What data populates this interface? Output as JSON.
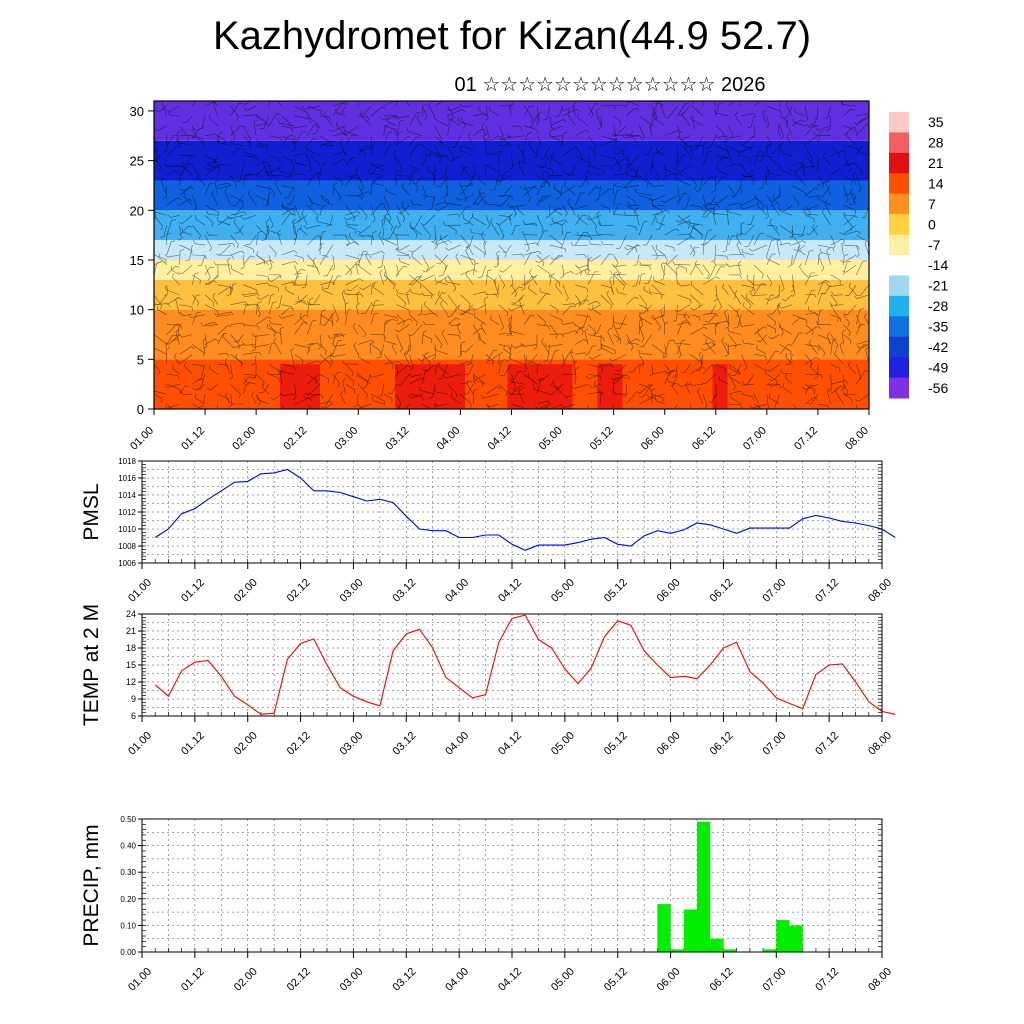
{
  "title": "Kazhydromet for Kizan(44.9 52.7)",
  "subtitle": "01 ☆☆☆☆☆☆☆☆☆☆☆☆☆ 2026",
  "time_labels": [
    "01.00",
    "01.12",
    "02.00",
    "02.12",
    "03.00",
    "03.12",
    "04.00",
    "04.12",
    "05.00",
    "05.12",
    "06.00",
    "06.12",
    "07.00",
    "07.12",
    "08.00"
  ],
  "colorbar": {
    "labels": [
      "35",
      "28",
      "21",
      "14",
      "7",
      "0",
      "-7",
      "-14",
      "-21",
      "-28",
      "-35",
      "-42",
      "-49",
      "-56"
    ],
    "colors": [
      "#ffc8c8",
      "#f06060",
      "#e01010",
      "#ff5000",
      "#ff9020",
      "#ffd040",
      "#fff0a0",
      "#ffffff",
      "#a0d8f0",
      "#20b0f0",
      "#1070e0",
      "#1040d0",
      "#2020e0",
      "#8030e0"
    ]
  },
  "chart_data": [
    {
      "type": "heatmap",
      "name": "cross-section",
      "y_ticks": [
        "30",
        "25",
        "20",
        "15",
        "10",
        "5",
        "0"
      ],
      "ylim": [
        0,
        31
      ],
      "xlim": [
        0,
        56
      ],
      "layers": [
        {
          "y_from": 0,
          "y_to": 5,
          "color": "#ff5000"
        },
        {
          "y_from": 5,
          "y_to": 10,
          "color": "#ff8c20"
        },
        {
          "y_from": 10,
          "y_to": 13,
          "color": "#ffc040"
        },
        {
          "y_from": 13,
          "y_to": 15,
          "color": "#fff0a0"
        },
        {
          "y_from": 15,
          "y_to": 17,
          "color": "#c8e8f8"
        },
        {
          "y_from": 17,
          "y_to": 20,
          "color": "#40b0f0"
        },
        {
          "y_from": 20,
          "y_to": 23,
          "color": "#1060e0"
        },
        {
          "y_from": 23,
          "y_to": 27,
          "color": "#1020d0"
        },
        {
          "y_from": 27,
          "y_to": 31,
          "color": "#6030e0"
        }
      ]
    },
    {
      "type": "line",
      "ylabel": "PMSL",
      "ylim": [
        1006,
        1018
      ],
      "y_ticks": [
        "1018",
        "1016",
        "1014",
        "1012",
        "1010",
        "1008",
        "1006"
      ],
      "color": "#0000ff",
      "values": [
        1009,
        1010,
        1011.8,
        1012.4,
        1013.5,
        1014.5,
        1015.5,
        1015.6,
        1016.5,
        1016.6,
        1017,
        1016,
        1014.5,
        1014.5,
        1014.3,
        1013.8,
        1013.3,
        1013.5,
        1013.1,
        1011.5,
        1010,
        1009.8,
        1009.8,
        1009,
        1009,
        1009.3,
        1009.3,
        1008.2,
        1007.5,
        1008.1,
        1008.1,
        1008.1,
        1008.4,
        1008.8,
        1009,
        1008.2,
        1008,
        1009.2,
        1009.8,
        1009.5,
        1009.9,
        1010.7,
        1010.5,
        1010,
        1009.5,
        1010.1,
        1010.1,
        1010.1,
        1010.1,
        1011.2,
        1011.6,
        1011.3,
        1010.9,
        1010.7,
        1010.4,
        1010,
        1009
      ]
    },
    {
      "type": "line",
      "ylabel": "TEMP at 2 M",
      "ylim": [
        6,
        24
      ],
      "y_ticks": [
        "24",
        "21",
        "18",
        "15",
        "12",
        "9",
        "6"
      ],
      "color": "#ff0000",
      "values": [
        11.5,
        9.5,
        14,
        15.5,
        15.8,
        13,
        9.5,
        8,
        6.3,
        6.5,
        16,
        18.8,
        19.6,
        15,
        11,
        9.5,
        8.5,
        7.8,
        17.5,
        20.5,
        21.3,
        18,
        12.8,
        11,
        9.2,
        9.8,
        19,
        23.2,
        23.8,
        19.5,
        18,
        14.3,
        11.7,
        14.5,
        20,
        22.8,
        22,
        17.5,
        15,
        12.8,
        13,
        12.6,
        15,
        18,
        19,
        13.8,
        11.8,
        9.2,
        8.2,
        7.3,
        13.3,
        15,
        15.2,
        12,
        8.5,
        6.8,
        6.3
      ]
    },
    {
      "type": "bar",
      "ylabel": "PRECIP, mm",
      "ylim": [
        0,
        0.5
      ],
      "y_ticks": [
        "0.50",
        "0.40",
        "0.30",
        "0.20",
        "0.10",
        "0.00"
      ],
      "color": "#00ee00",
      "values": [
        0,
        0,
        0,
        0,
        0,
        0,
        0,
        0,
        0,
        0,
        0,
        0,
        0,
        0,
        0,
        0,
        0,
        0,
        0,
        0,
        0,
        0,
        0,
        0,
        0,
        0,
        0,
        0,
        0,
        0,
        0,
        0,
        0,
        0,
        0,
        0,
        0,
        0,
        0,
        0.18,
        0.01,
        0.16,
        0.49,
        0.05,
        0.01,
        0,
        0,
        0.01,
        0.12,
        0.1,
        0,
        0,
        0,
        0,
        0,
        0
      ]
    }
  ]
}
